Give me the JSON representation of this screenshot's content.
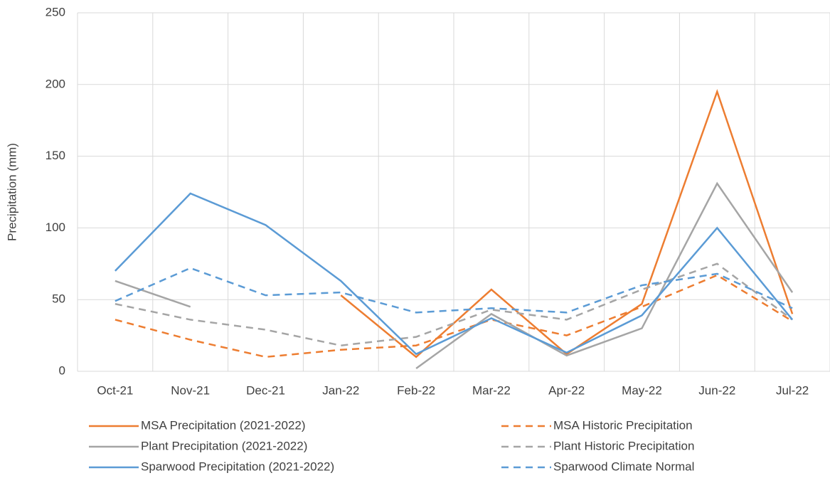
{
  "chart_data": {
    "type": "line",
    "y_label": "Precipitation (mm)",
    "categories": [
      "Oct-21",
      "Nov-21",
      "Dec-21",
      "Jan-22",
      "Feb-22",
      "Mar-22",
      "Apr-22",
      "May-22",
      "Jun-22",
      "Jul-22"
    ],
    "ylim": [
      0,
      250
    ],
    "yticks": [
      0,
      50,
      100,
      150,
      200,
      250
    ],
    "grid": true,
    "legend": "bottom",
    "series": [
      {
        "name": "MSA Precipitation (2021-2022)",
        "color": "#ed7d31",
        "dashed": false,
        "values": [
          null,
          null,
          null,
          53,
          10,
          57,
          12,
          47,
          195,
          40
        ]
      },
      {
        "name": "MSA Historic Precipitation",
        "color": "#ed7d31",
        "dashed": true,
        "values": [
          36,
          22,
          10,
          15,
          18,
          36,
          25,
          45,
          67,
          35
        ]
      },
      {
        "name": "Plant Precipitation (2021-2022)",
        "color": "#a5a5a5",
        "dashed": false,
        "values": [
          63,
          45,
          null,
          null,
          2,
          40,
          11,
          30,
          131,
          55
        ]
      },
      {
        "name": "Plant Historic Precipitation",
        "color": "#a5a5a5",
        "dashed": true,
        "values": [
          47,
          36,
          29,
          18,
          24,
          43,
          36,
          57,
          75,
          36
        ]
      },
      {
        "name": "Sparwood Precipitation (2021-2022)",
        "color": "#5b9bd5",
        "dashed": false,
        "values": [
          70,
          124,
          102,
          63,
          12,
          37,
          13,
          39,
          100,
          36
        ]
      },
      {
        "name": "Sparwood Climate Normal",
        "color": "#5b9bd5",
        "dashed": true,
        "values": [
          49,
          72,
          53,
          55,
          41,
          44,
          41,
          60,
          68,
          44
        ]
      }
    ]
  }
}
